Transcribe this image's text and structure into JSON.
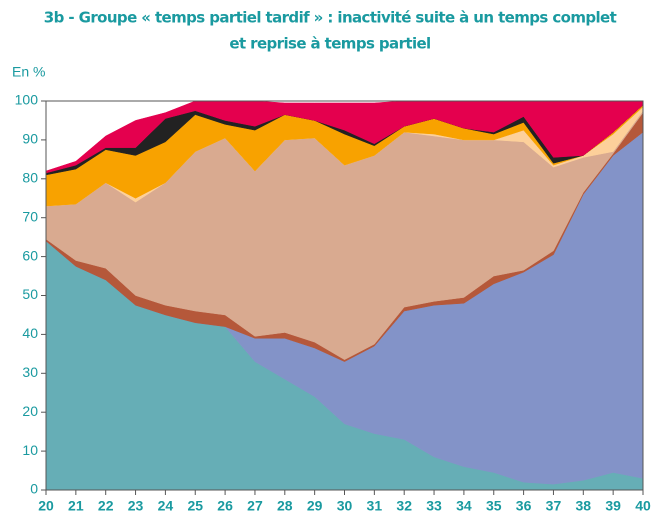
{
  "chart_data": {
    "type": "stacked_area",
    "title": [
      "3b - Groupe « temps partiel tardif » : inactivité suite à un temps complet",
      "et reprise à temps partiel"
    ],
    "y_label": "En %",
    "x": [
      20,
      21,
      22,
      23,
      24,
      25,
      26,
      27,
      28,
      29,
      30,
      31,
      32,
      33,
      34,
      35,
      36,
      37,
      38,
      39,
      40
    ],
    "xlim": [
      20,
      40
    ],
    "xticks": [
      20,
      21,
      22,
      23,
      24,
      25,
      26,
      27,
      28,
      29,
      30,
      31,
      32,
      33,
      34,
      35,
      36,
      37,
      38,
      39,
      40
    ],
    "ylim": [
      0,
      100
    ],
    "yticks": [
      0,
      10,
      20,
      30,
      40,
      50,
      60,
      70,
      80,
      90,
      100
    ],
    "series": [
      {
        "color": "#66aeb6",
        "values": [
          64,
          57.5,
          54,
          47.5,
          45,
          43,
          42,
          33,
          28.5,
          24,
          17,
          14.5,
          13,
          8.5,
          6,
          4.5,
          2,
          1.5,
          2.5,
          4.5,
          3
        ]
      },
      {
        "color": "#8393c8",
        "values": [
          0,
          0,
          0,
          0,
          0,
          0,
          0,
          6,
          10.5,
          12.5,
          16,
          22.5,
          33,
          39,
          42,
          48.5,
          54,
          59,
          73.5,
          81.5,
          89
        ]
      },
      {
        "color": "#b5583a",
        "values": [
          0.5,
          1.5,
          3,
          2.5,
          2.5,
          3,
          3,
          0.5,
          1.5,
          1.5,
          0.5,
          0.5,
          1,
          1,
          1.5,
          2,
          0.5,
          1,
          0.5,
          0.5,
          5
        ]
      },
      {
        "color": "#d9aa90",
        "values": [
          8.5,
          14.5,
          22,
          24,
          31.5,
          41,
          45.5,
          42.5,
          49.5,
          52.5,
          50,
          48.5,
          45,
          42.5,
          40.5,
          35,
          33,
          21.5,
          9,
          0.5,
          0.5
        ]
      },
      {
        "color": "#fdd09a",
        "values": [
          0,
          0,
          0,
          1,
          0,
          0,
          0,
          0,
          0,
          0,
          0,
          0,
          0,
          0.5,
          0,
          0,
          3,
          0.5,
          0.5,
          4.5,
          1
        ]
      },
      {
        "color": "#f8a200",
        "values": [
          8,
          9,
          8.5,
          11,
          10.5,
          9.5,
          3.5,
          10.5,
          6.5,
          4.5,
          8,
          2.5,
          1.5,
          4,
          3,
          1.5,
          2,
          0.5,
          0,
          0.5,
          0.5
        ]
      },
      {
        "color": "#222222",
        "values": [
          0.5,
          1,
          0.5,
          2,
          6,
          1,
          1,
          1,
          0,
          0,
          1,
          0.5,
          0,
          0,
          0,
          0.5,
          1.5,
          1.5,
          0,
          0,
          0
        ]
      },
      {
        "color": "#e4004e",
        "values": [
          0.5,
          1,
          3,
          7,
          1.5,
          2.5,
          5,
          6.5,
          3,
          4.5,
          7,
          10.5,
          6.5,
          4.5,
          7,
          8,
          4,
          14.5,
          14,
          8,
          1
        ]
      }
    ]
  }
}
